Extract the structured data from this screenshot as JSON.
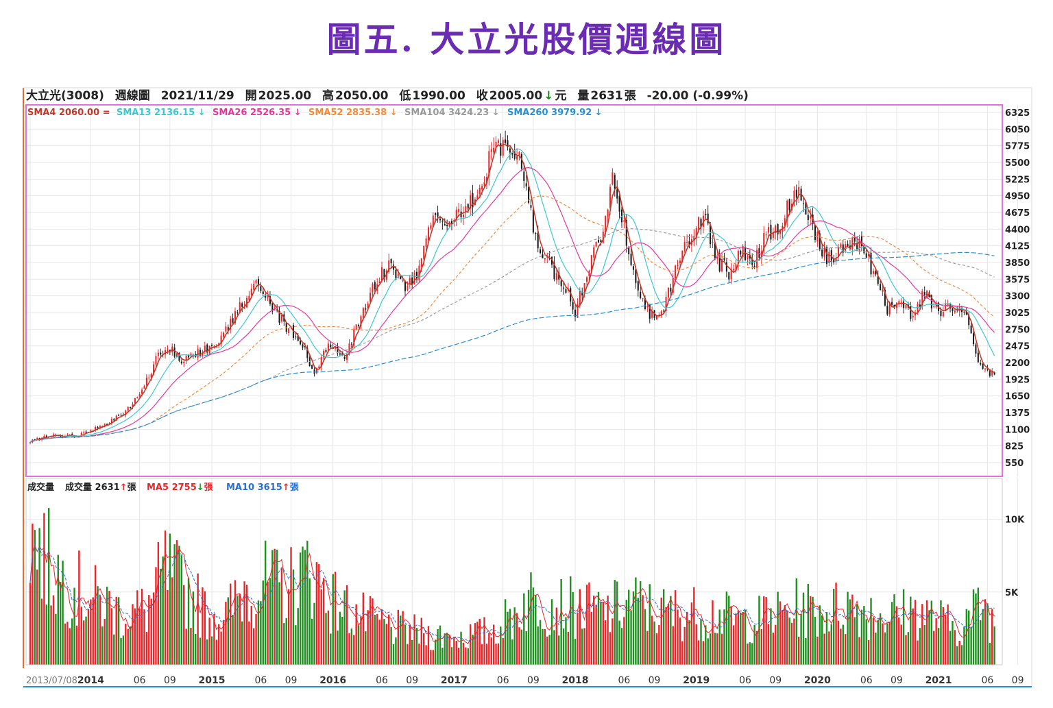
{
  "page": {
    "title": "圖五. 大立光股價週線圖"
  },
  "header": {
    "stock": "大立光(3008)",
    "period": "週線圖",
    "date": "2021/11/29",
    "open_label": "開",
    "open": "2025.00",
    "high_label": "高",
    "high": "2050.00",
    "low_label": "低",
    "low": "1990.00",
    "close_label": "收",
    "close": "2005.00",
    "close_unit": "元",
    "volume_label": "量",
    "volume": "2631",
    "volume_unit": "張",
    "change": "-20.00 (-0.99%)"
  },
  "colors": {
    "up": "#e8262a",
    "down": "#1f8f1f",
    "sma4": "#c0392b",
    "sma13": "#3cc7cf",
    "sma26": "#e0399a",
    "sma52": "#f08a3c",
    "sma104": "#9a9a9a",
    "sma260": "#2a8fd0",
    "ma5": "#e8262a",
    "ma10": "#2a6fd0",
    "frame": "#e070e0",
    "title": "#6a2cb0"
  },
  "chart_data": {
    "type": "line",
    "price": {
      "y_ticks": [
        "6325",
        "6050",
        "5775",
        "5500",
        "5225",
        "4950",
        "4675",
        "4400",
        "4125",
        "3850",
        "3575",
        "3300",
        "3025",
        "2750",
        "2475",
        "2200",
        "1925",
        "1650",
        "1375",
        "1100",
        "825",
        "550"
      ],
      "ylim": [
        550,
        6325
      ],
      "close_anchors": [
        [
          0,
          900
        ],
        [
          10,
          1000
        ],
        [
          20,
          980
        ],
        [
          30,
          1150
        ],
        [
          40,
          1350
        ],
        [
          50,
          1900
        ],
        [
          55,
          2350
        ],
        [
          60,
          2450
        ],
        [
          65,
          2200
        ],
        [
          70,
          2300
        ],
        [
          80,
          2550
        ],
        [
          90,
          3100
        ],
        [
          98,
          3500
        ],
        [
          103,
          3150
        ],
        [
          110,
          2800
        ],
        [
          118,
          2450
        ],
        [
          122,
          1950
        ],
        [
          128,
          2500
        ],
        [
          135,
          2300
        ],
        [
          142,
          2950
        ],
        [
          150,
          3650
        ],
        [
          155,
          3800
        ],
        [
          160,
          3450
        ],
        [
          166,
          3600
        ],
        [
          172,
          4450
        ],
        [
          182,
          4650
        ],
        [
          190,
          4850
        ],
        [
          197,
          5500
        ],
        [
          202,
          5800
        ],
        [
          207,
          5750
        ],
        [
          212,
          5350
        ],
        [
          216,
          4400
        ],
        [
          222,
          3850
        ],
        [
          228,
          3550
        ],
        [
          234,
          3050
        ],
        [
          240,
          3800
        ],
        [
          246,
          4350
        ],
        [
          250,
          5200
        ],
        [
          255,
          4400
        ],
        [
          260,
          3500
        ],
        [
          266,
          3000
        ],
        [
          272,
          3050
        ],
        [
          278,
          3900
        ],
        [
          284,
          4300
        ],
        [
          290,
          4600
        ],
        [
          295,
          3850
        ],
        [
          300,
          3700
        ],
        [
          305,
          4050
        ],
        [
          310,
          3800
        ],
        [
          316,
          4300
        ],
        [
          322,
          4500
        ],
        [
          328,
          5050
        ],
        [
          334,
          4700
        ],
        [
          340,
          4000
        ],
        [
          345,
          3900
        ],
        [
          350,
          4100
        ],
        [
          356,
          4200
        ],
        [
          362,
          3700
        ],
        [
          368,
          3100
        ],
        [
          374,
          3250
        ],
        [
          379,
          2950
        ],
        [
          384,
          3350
        ],
        [
          390,
          3050
        ],
        [
          396,
          3150
        ],
        [
          402,
          2900
        ],
        [
          406,
          2400
        ],
        [
          409,
          2050
        ],
        [
          414,
          2005
        ]
      ],
      "series": [
        {
          "name": "SMA4",
          "label": "SMA4 2060.00",
          "arrow": "=",
          "period": 4
        },
        {
          "name": "SMA13",
          "label": "SMA13 2136.15",
          "arrow": "↓",
          "period": 13
        },
        {
          "name": "SMA26",
          "label": "SMA26 2526.35",
          "arrow": "↓",
          "period": 26
        },
        {
          "name": "SMA52",
          "label": "SMA52 2835.38",
          "arrow": "↓",
          "period": 52
        },
        {
          "name": "SMA104",
          "label": "SMA104 3424.23",
          "arrow": "↓",
          "period": 104
        },
        {
          "name": "SMA260",
          "label": "SMA260 3979.92",
          "arrow": "↓",
          "period": 260
        }
      ]
    },
    "volume": {
      "label": "成交量",
      "current_label": "成交量 2631",
      "current_arrow": "↑",
      "unit": "張",
      "ma5_label": "MA5 2755",
      "ma5_arrow": "↓",
      "ma10_label": "MA10 3615",
      "ma10_arrow": "↑",
      "y_ticks": [
        "10K",
        "5K"
      ],
      "ylim": [
        0,
        12800
      ],
      "level_anchors": [
        [
          0,
          9000
        ],
        [
          10,
          6500
        ],
        [
          20,
          5200
        ],
        [
          30,
          4300
        ],
        [
          40,
          3500
        ],
        [
          50,
          3800
        ],
        [
          58,
          6500
        ],
        [
          66,
          5200
        ],
        [
          76,
          3500
        ],
        [
          84,
          3300
        ],
        [
          92,
          5300
        ],
        [
          100,
          5600
        ],
        [
          110,
          5200
        ],
        [
          120,
          6600
        ],
        [
          130,
          4400
        ],
        [
          142,
          3300
        ],
        [
          156,
          2500
        ],
        [
          170,
          2100
        ],
        [
          184,
          1900
        ],
        [
          196,
          2200
        ],
        [
          206,
          3200
        ],
        [
          214,
          4600
        ],
        [
          224,
          4200
        ],
        [
          236,
          3800
        ],
        [
          248,
          3600
        ],
        [
          258,
          4300
        ],
        [
          270,
          3600
        ],
        [
          282,
          3600
        ],
        [
          294,
          3500
        ],
        [
          306,
          3000
        ],
        [
          318,
          3300
        ],
        [
          330,
          3900
        ],
        [
          340,
          3600
        ],
        [
          352,
          4100
        ],
        [
          362,
          3600
        ],
        [
          372,
          3400
        ],
        [
          380,
          3700
        ],
        [
          390,
          3100
        ],
        [
          398,
          2500
        ],
        [
          404,
          3300
        ],
        [
          409,
          4400
        ],
        [
          414,
          2631
        ]
      ]
    },
    "x_ticks": [
      {
        "label": "2013/07/08",
        "week": 0
      },
      {
        "label": "2014",
        "week": 26
      },
      {
        "label": "06",
        "week": 47
      },
      {
        "label": "09",
        "week": 60
      },
      {
        "label": "2015",
        "week": 78
      },
      {
        "label": "06",
        "week": 99
      },
      {
        "label": "09",
        "week": 112
      },
      {
        "label": "2016",
        "week": 130
      },
      {
        "label": "06",
        "week": 151
      },
      {
        "label": "09",
        "week": 164
      },
      {
        "label": "2017",
        "week": 182
      },
      {
        "label": "06",
        "week": 203
      },
      {
        "label": "09",
        "week": 216
      },
      {
        "label": "2018",
        "week": 234
      },
      {
        "label": "06",
        "week": 255
      },
      {
        "label": "09",
        "week": 268
      },
      {
        "label": "2019",
        "week": 286
      },
      {
        "label": "06",
        "week": 307
      },
      {
        "label": "09",
        "week": 320
      },
      {
        "label": "2020",
        "week": 338
      },
      {
        "label": "06",
        "week": 359
      },
      {
        "label": "09",
        "week": 372
      },
      {
        "label": "2021",
        "week": 390
      },
      {
        "label": "06",
        "week": 411
      },
      {
        "label": "09",
        "week": 424
      }
    ],
    "x_range_weeks": [
      0,
      415
    ],
    "grid": true
  }
}
